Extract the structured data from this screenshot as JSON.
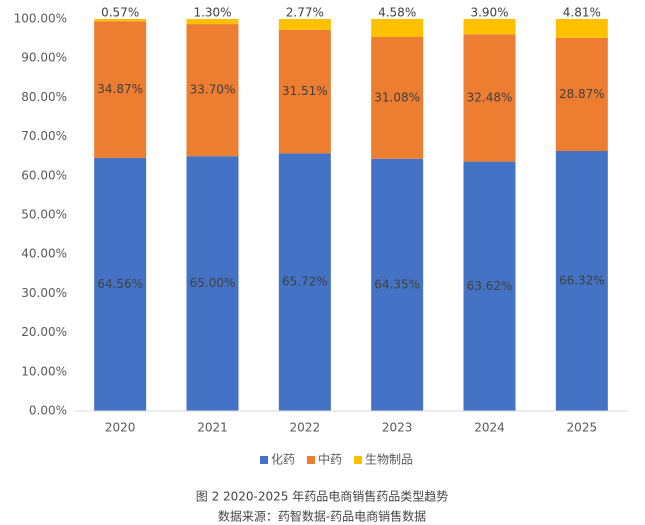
{
  "chart_data": {
    "type": "stacked_bar",
    "categories": [
      "2020",
      "2021",
      "2022",
      "2023",
      "2024",
      "2025"
    ],
    "series": [
      {
        "name": "化药",
        "color": "#4472c4",
        "values": [
          64.56,
          65.0,
          65.72,
          64.35,
          63.62,
          66.32
        ],
        "value_labels": [
          "64.56%",
          "65.00%",
          "65.72%",
          "64.35%",
          "63.62%",
          "66.32%"
        ]
      },
      {
        "name": "中药",
        "color": "#ed7d31",
        "values": [
          34.87,
          33.7,
          31.51,
          31.08,
          32.48,
          28.87
        ],
        "value_labels": [
          "34.87%",
          "33.70%",
          "31.51%",
          "31.08%",
          "32.48%",
          "28.87%"
        ]
      },
      {
        "name": "生物制品",
        "color": "#ffc000",
        "values": [
          0.57,
          1.3,
          2.77,
          4.58,
          3.9,
          4.81
        ],
        "value_labels": [
          "0.57%",
          "1.30%",
          "2.77%",
          "4.58%",
          "3.90%",
          "4.81%"
        ]
      }
    ],
    "ylim": [
      0,
      100
    ],
    "yticks": [
      {
        "value": 0,
        "label": "0.00%"
      },
      {
        "value": 10,
        "label": "10.00%"
      },
      {
        "value": 20,
        "label": "20.00%"
      },
      {
        "value": 30,
        "label": "30.00%"
      },
      {
        "value": 40,
        "label": "40.00%"
      },
      {
        "value": 50,
        "label": "50.00%"
      },
      {
        "value": 60,
        "label": "60.00%"
      },
      {
        "value": 70,
        "label": "70.00%"
      },
      {
        "value": 80,
        "label": "80.00%"
      },
      {
        "value": 90,
        "label": "90.00%"
      },
      {
        "value": 100,
        "label": "100.00%"
      }
    ],
    "legend": "bottom",
    "caption": "图 2 2020-2025 年药品电商销售药品类型趋势",
    "source": "数据来源：药智数据-药品电商销售数据"
  }
}
